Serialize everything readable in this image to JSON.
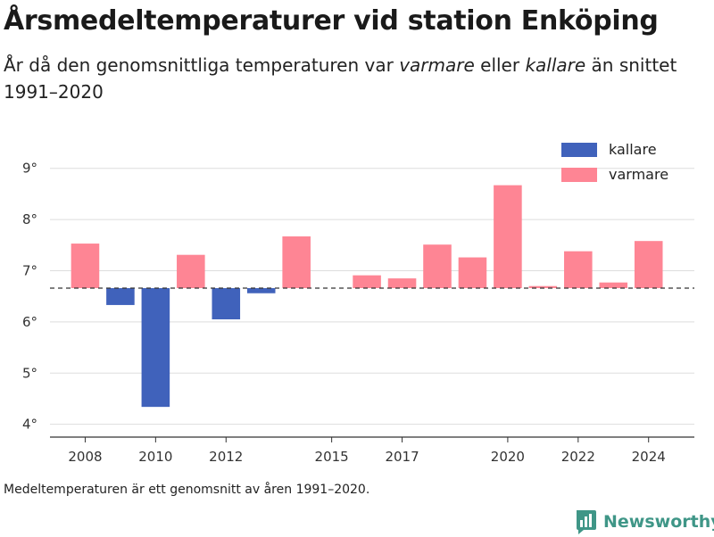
{
  "header": {
    "title": "Årsmedeltemperaturer vid station Enköping",
    "subtitle_part1": "År då den genomsnittliga temperaturen var ",
    "subtitle_em1": "varmare",
    "subtitle_part2": " eller ",
    "subtitle_em2": "kallare",
    "subtitle_part3": " än snittet 1991–2020"
  },
  "footer": {
    "note": "Medeltemperaturen är ett genomsnitt av åren 1991–2020.",
    "brand": "Newsworthy"
  },
  "colors": {
    "kallare": "#4062bb",
    "varmare": "#fe8594",
    "baseline": "#333333",
    "grid": "#dddddd",
    "brand": "#3f9687"
  },
  "chart_data": {
    "type": "bar",
    "baseline": 6.66,
    "ylim": [
      3.75,
      9.5
    ],
    "yticks": [
      4,
      5,
      6,
      7,
      8,
      9
    ],
    "ytick_labels": [
      "4°",
      "5°",
      "6°",
      "7°",
      "8°",
      "9°"
    ],
    "xlim": [
      2007,
      2025.3
    ],
    "xticks": [
      2008,
      2010,
      2012,
      2015,
      2017,
      2020,
      2022,
      2024
    ],
    "xtick_labels": [
      "2008",
      "2010",
      "2012",
      "2015",
      "2017",
      "2020",
      "2022",
      "2024"
    ],
    "grid": true,
    "legend_position": "top-right",
    "legend": [
      {
        "key": "kallare",
        "label": "kallare"
      },
      {
        "key": "varmare",
        "label": "varmare"
      }
    ],
    "x": [
      2008,
      2009,
      2010,
      2011,
      2012,
      2013,
      2014,
      2016,
      2017,
      2018,
      2019,
      2020,
      2021,
      2022,
      2023,
      2024
    ],
    "values": [
      7.53,
      6.33,
      4.34,
      7.31,
      6.05,
      6.56,
      7.67,
      6.91,
      6.85,
      7.51,
      7.26,
      8.67,
      6.7,
      7.38,
      6.77,
      7.58
    ]
  }
}
